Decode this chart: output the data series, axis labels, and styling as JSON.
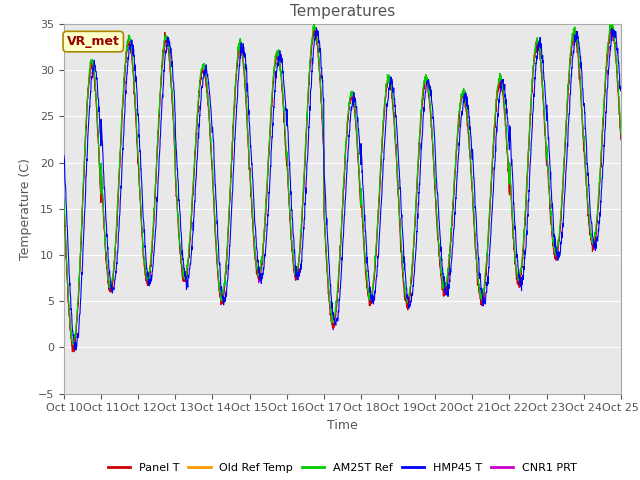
{
  "title": "Temperatures",
  "xlabel": "Time",
  "ylabel": "Temperature (C)",
  "ylim": [
    -5,
    35
  ],
  "annotation": "VR_met",
  "x_tick_labels": [
    "Oct 10",
    "Oct 11",
    "Oct 12",
    "Oct 13",
    "Oct 14",
    "Oct 15",
    "Oct 16",
    "Oct 17",
    "Oct 18",
    "Oct 19",
    "Oct 20",
    "Oct 21",
    "Oct 22",
    "Oct 23",
    "Oct 24",
    "Oct 25"
  ],
  "series_names": [
    "Panel T",
    "Old Ref Temp",
    "AM25T Ref",
    "HMP45 T",
    "CNR1 PRT"
  ],
  "series_colors": [
    "#cc0000",
    "#ff9900",
    "#00cc00",
    "#0000ff",
    "#cc00cc"
  ],
  "bg_color": "#e8e8e8",
  "fig_bg": "#ffffff",
  "grid_color": "#ffffff",
  "title_color": "#555555",
  "label_color": "#555555",
  "spine_color": "#aaaaaa",
  "title_fontsize": 11,
  "axis_fontsize": 9,
  "tick_fontsize": 8,
  "daily_maxes": [
    30.5,
    33.0,
    33.2,
    30.0,
    32.5,
    31.5,
    34.2,
    27.0,
    28.8,
    28.8,
    27.2,
    28.7,
    32.8,
    33.8,
    34.3
  ],
  "daily_mins": [
    0.0,
    6.2,
    7.0,
    7.2,
    5.0,
    7.5,
    7.6,
    2.5,
    5.0,
    4.6,
    6.0,
    5.0,
    7.0,
    9.8,
    11.0
  ],
  "anomaly_days": [
    6,
    7
  ],
  "n_days": 15,
  "pts_per_day": 144
}
